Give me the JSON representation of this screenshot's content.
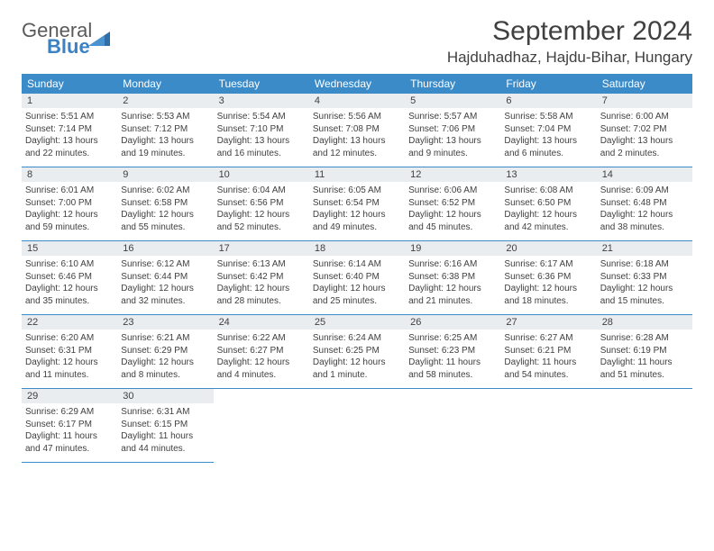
{
  "logo": {
    "line1": "General",
    "line2": "Blue"
  },
  "title": "September 2024",
  "location": "Hajduhadhaz, Hajdu-Bihar, Hungary",
  "colors": {
    "header_bg": "#3b8bc9",
    "header_text": "#ffffff",
    "daynum_bg": "#e9edf0",
    "text": "#404040",
    "border": "#3b8bc9",
    "logo_gray": "#5a5a5a",
    "logo_blue": "#3b82c4"
  },
  "typography": {
    "title_fontsize": 30,
    "location_fontsize": 17,
    "dayhead_fontsize": 12,
    "daynum_fontsize": 11,
    "info_fontsize": 10
  },
  "day_names": [
    "Sunday",
    "Monday",
    "Tuesday",
    "Wednesday",
    "Thursday",
    "Friday",
    "Saturday"
  ],
  "weeks": [
    [
      {
        "n": "1",
        "sr": "Sunrise: 5:51 AM",
        "ss": "Sunset: 7:14 PM",
        "d1": "Daylight: 13 hours",
        "d2": "and 22 minutes."
      },
      {
        "n": "2",
        "sr": "Sunrise: 5:53 AM",
        "ss": "Sunset: 7:12 PM",
        "d1": "Daylight: 13 hours",
        "d2": "and 19 minutes."
      },
      {
        "n": "3",
        "sr": "Sunrise: 5:54 AM",
        "ss": "Sunset: 7:10 PM",
        "d1": "Daylight: 13 hours",
        "d2": "and 16 minutes."
      },
      {
        "n": "4",
        "sr": "Sunrise: 5:56 AM",
        "ss": "Sunset: 7:08 PM",
        "d1": "Daylight: 13 hours",
        "d2": "and 12 minutes."
      },
      {
        "n": "5",
        "sr": "Sunrise: 5:57 AM",
        "ss": "Sunset: 7:06 PM",
        "d1": "Daylight: 13 hours",
        "d2": "and 9 minutes."
      },
      {
        "n": "6",
        "sr": "Sunrise: 5:58 AM",
        "ss": "Sunset: 7:04 PM",
        "d1": "Daylight: 13 hours",
        "d2": "and 6 minutes."
      },
      {
        "n": "7",
        "sr": "Sunrise: 6:00 AM",
        "ss": "Sunset: 7:02 PM",
        "d1": "Daylight: 13 hours",
        "d2": "and 2 minutes."
      }
    ],
    [
      {
        "n": "8",
        "sr": "Sunrise: 6:01 AM",
        "ss": "Sunset: 7:00 PM",
        "d1": "Daylight: 12 hours",
        "d2": "and 59 minutes."
      },
      {
        "n": "9",
        "sr": "Sunrise: 6:02 AM",
        "ss": "Sunset: 6:58 PM",
        "d1": "Daylight: 12 hours",
        "d2": "and 55 minutes."
      },
      {
        "n": "10",
        "sr": "Sunrise: 6:04 AM",
        "ss": "Sunset: 6:56 PM",
        "d1": "Daylight: 12 hours",
        "d2": "and 52 minutes."
      },
      {
        "n": "11",
        "sr": "Sunrise: 6:05 AM",
        "ss": "Sunset: 6:54 PM",
        "d1": "Daylight: 12 hours",
        "d2": "and 49 minutes."
      },
      {
        "n": "12",
        "sr": "Sunrise: 6:06 AM",
        "ss": "Sunset: 6:52 PM",
        "d1": "Daylight: 12 hours",
        "d2": "and 45 minutes."
      },
      {
        "n": "13",
        "sr": "Sunrise: 6:08 AM",
        "ss": "Sunset: 6:50 PM",
        "d1": "Daylight: 12 hours",
        "d2": "and 42 minutes."
      },
      {
        "n": "14",
        "sr": "Sunrise: 6:09 AM",
        "ss": "Sunset: 6:48 PM",
        "d1": "Daylight: 12 hours",
        "d2": "and 38 minutes."
      }
    ],
    [
      {
        "n": "15",
        "sr": "Sunrise: 6:10 AM",
        "ss": "Sunset: 6:46 PM",
        "d1": "Daylight: 12 hours",
        "d2": "and 35 minutes."
      },
      {
        "n": "16",
        "sr": "Sunrise: 6:12 AM",
        "ss": "Sunset: 6:44 PM",
        "d1": "Daylight: 12 hours",
        "d2": "and 32 minutes."
      },
      {
        "n": "17",
        "sr": "Sunrise: 6:13 AM",
        "ss": "Sunset: 6:42 PM",
        "d1": "Daylight: 12 hours",
        "d2": "and 28 minutes."
      },
      {
        "n": "18",
        "sr": "Sunrise: 6:14 AM",
        "ss": "Sunset: 6:40 PM",
        "d1": "Daylight: 12 hours",
        "d2": "and 25 minutes."
      },
      {
        "n": "19",
        "sr": "Sunrise: 6:16 AM",
        "ss": "Sunset: 6:38 PM",
        "d1": "Daylight: 12 hours",
        "d2": "and 21 minutes."
      },
      {
        "n": "20",
        "sr": "Sunrise: 6:17 AM",
        "ss": "Sunset: 6:36 PM",
        "d1": "Daylight: 12 hours",
        "d2": "and 18 minutes."
      },
      {
        "n": "21",
        "sr": "Sunrise: 6:18 AM",
        "ss": "Sunset: 6:33 PM",
        "d1": "Daylight: 12 hours",
        "d2": "and 15 minutes."
      }
    ],
    [
      {
        "n": "22",
        "sr": "Sunrise: 6:20 AM",
        "ss": "Sunset: 6:31 PM",
        "d1": "Daylight: 12 hours",
        "d2": "and 11 minutes."
      },
      {
        "n": "23",
        "sr": "Sunrise: 6:21 AM",
        "ss": "Sunset: 6:29 PM",
        "d1": "Daylight: 12 hours",
        "d2": "and 8 minutes."
      },
      {
        "n": "24",
        "sr": "Sunrise: 6:22 AM",
        "ss": "Sunset: 6:27 PM",
        "d1": "Daylight: 12 hours",
        "d2": "and 4 minutes."
      },
      {
        "n": "25",
        "sr": "Sunrise: 6:24 AM",
        "ss": "Sunset: 6:25 PM",
        "d1": "Daylight: 12 hours",
        "d2": "and 1 minute."
      },
      {
        "n": "26",
        "sr": "Sunrise: 6:25 AM",
        "ss": "Sunset: 6:23 PM",
        "d1": "Daylight: 11 hours",
        "d2": "and 58 minutes."
      },
      {
        "n": "27",
        "sr": "Sunrise: 6:27 AM",
        "ss": "Sunset: 6:21 PM",
        "d1": "Daylight: 11 hours",
        "d2": "and 54 minutes."
      },
      {
        "n": "28",
        "sr": "Sunrise: 6:28 AM",
        "ss": "Sunset: 6:19 PM",
        "d1": "Daylight: 11 hours",
        "d2": "and 51 minutes."
      }
    ],
    [
      {
        "n": "29",
        "sr": "Sunrise: 6:29 AM",
        "ss": "Sunset: 6:17 PM",
        "d1": "Daylight: 11 hours",
        "d2": "and 47 minutes."
      },
      {
        "n": "30",
        "sr": "Sunrise: 6:31 AM",
        "ss": "Sunset: 6:15 PM",
        "d1": "Daylight: 11 hours",
        "d2": "and 44 minutes."
      },
      null,
      null,
      null,
      null,
      null
    ]
  ]
}
